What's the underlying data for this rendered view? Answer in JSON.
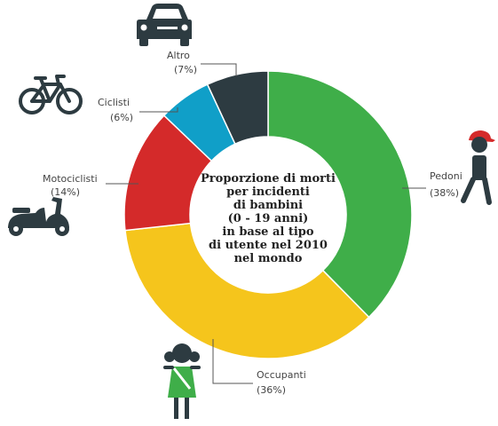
{
  "chart_data": {
    "type": "pie",
    "title_lines": [
      "Proporzione di morti",
      "per incidenti",
      "di bambini",
      "(0 - 19 anni)",
      "in base al tipo",
      "di utente nel 2010",
      "nel mondo"
    ],
    "slices": [
      {
        "name": "Pedoni",
        "percent_label": "(38%)",
        "value": 38,
        "color": "#3fae49",
        "icon": "pedestrian-icon"
      },
      {
        "name": "Occupanti",
        "percent_label": "(36%)",
        "value": 36,
        "color": "#f5c51c",
        "icon": "child-occupant-icon"
      },
      {
        "name": "Motociclisti",
        "percent_label": "(14%)",
        "value": 14,
        "color": "#d42a2a",
        "icon": "scooter-icon"
      },
      {
        "name": "Ciclisti",
        "percent_label": "(6%)",
        "value": 6,
        "color": "#109fc8",
        "icon": "bicycle-icon"
      },
      {
        "name": "Altro",
        "percent_label": "(7%)",
        "value": 7,
        "color": "#2d3b41",
        "icon": "car-icon"
      }
    ],
    "legend": "none"
  },
  "colors": {
    "icon": "#2d3b41",
    "leader": "#555555",
    "occupant_dress": "#3fae49"
  }
}
